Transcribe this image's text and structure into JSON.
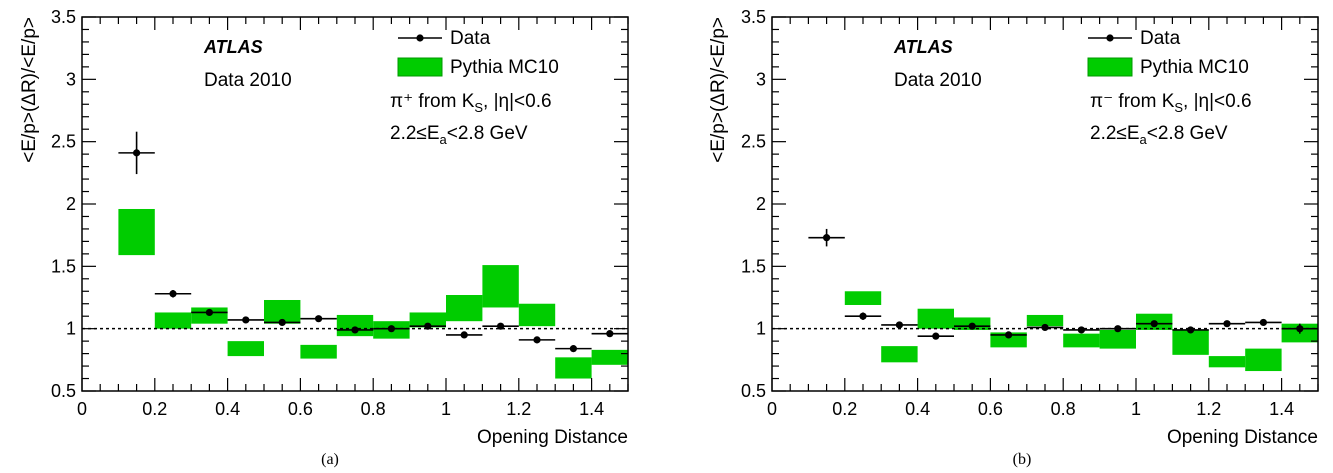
{
  "chart_data": [
    {
      "type": "scatter",
      "panel_label": "(a)",
      "experiment": "ATLAS",
      "dataset": "Data 2010",
      "selection_line1": "π⁺ from K",
      "selection_line1_sub": "S",
      "selection_line1_tail": ", |η|<0.6",
      "selection_line2": "2.2≤E",
      "selection_line2_sub": "a",
      "selection_line2_tail": "<2.8 GeV",
      "xlabel": "Opening Distance",
      "ylabel": "<E/p>(ΔR)/<E/p>",
      "xlim": [
        0,
        1.5
      ],
      "ylim": [
        0.5,
        3.5
      ],
      "x_ticks": [
        "0",
        "0.2",
        "0.4",
        "0.6",
        "0.8",
        "1",
        "1.2",
        "1.4"
      ],
      "y_ticks": [
        "0.5",
        "1",
        "1.5",
        "2",
        "2.5",
        "3",
        "3.5"
      ],
      "reference_line": 1.0,
      "legend": [
        {
          "name": "Data",
          "marker": "point-errorbar"
        },
        {
          "name": "Pythia MC10",
          "marker": "green-box"
        }
      ],
      "data": {
        "x": [
          0.15,
          0.25,
          0.35,
          0.45,
          0.55,
          0.65,
          0.75,
          0.85,
          0.95,
          1.05,
          1.15,
          1.25,
          1.35,
          1.45
        ],
        "y": [
          2.41,
          1.28,
          1.13,
          1.07,
          1.05,
          1.08,
          0.99,
          1.0,
          1.02,
          0.95,
          1.02,
          0.91,
          0.84,
          0.96
        ],
        "yerr": [
          0.17,
          0.03,
          0.02,
          0.02,
          0.02,
          0.02,
          0.02,
          0.02,
          0.02,
          0.02,
          0.02,
          0.02,
          0.02,
          0.02
        ],
        "xerr": 0.05
      },
      "mc_bands": [
        {
          "xlo": 0.1,
          "xhi": 0.2,
          "ylo": 1.59,
          "yhi": 1.96
        },
        {
          "xlo": 0.2,
          "xhi": 0.3,
          "ylo": 1.0,
          "yhi": 1.13
        },
        {
          "xlo": 0.3,
          "xhi": 0.4,
          "ylo": 1.04,
          "yhi": 1.17
        },
        {
          "xlo": 0.4,
          "xhi": 0.5,
          "ylo": 0.78,
          "yhi": 0.9
        },
        {
          "xlo": 0.5,
          "xhi": 0.6,
          "ylo": 1.04,
          "yhi": 1.23
        },
        {
          "xlo": 0.6,
          "xhi": 0.7,
          "ylo": 0.76,
          "yhi": 0.87
        },
        {
          "xlo": 0.7,
          "xhi": 0.8,
          "ylo": 0.94,
          "yhi": 1.11
        },
        {
          "xlo": 0.8,
          "xhi": 0.9,
          "ylo": 0.92,
          "yhi": 1.06
        },
        {
          "xlo": 0.9,
          "xhi": 1.0,
          "ylo": 1.01,
          "yhi": 1.13
        },
        {
          "xlo": 1.0,
          "xhi": 1.1,
          "ylo": 1.06,
          "yhi": 1.27
        },
        {
          "xlo": 1.1,
          "xhi": 1.2,
          "ylo": 1.17,
          "yhi": 1.51
        },
        {
          "xlo": 1.2,
          "xhi": 1.3,
          "ylo": 1.02,
          "yhi": 1.2
        },
        {
          "xlo": 1.3,
          "xhi": 1.4,
          "ylo": 0.6,
          "yhi": 0.77
        },
        {
          "xlo": 1.4,
          "xhi": 1.5,
          "ylo": 0.71,
          "yhi": 0.83
        }
      ]
    },
    {
      "type": "scatter",
      "panel_label": "(b)",
      "experiment": "ATLAS",
      "dataset": "Data 2010",
      "selection_line1": "π⁻ from K",
      "selection_line1_sub": "S",
      "selection_line1_tail": ", |η|<0.6",
      "selection_line2": "2.2≤E",
      "selection_line2_sub": "a",
      "selection_line2_tail": "<2.8 GeV",
      "xlabel": "Opening Distance",
      "ylabel": "<E/p>(ΔR)/<E/p>",
      "xlim": [
        0,
        1.5
      ],
      "ylim": [
        0.5,
        3.5
      ],
      "x_ticks": [
        "0",
        "0.2",
        "0.4",
        "0.6",
        "0.8",
        "1",
        "1.2",
        "1.4"
      ],
      "y_ticks": [
        "0.5",
        "1",
        "1.5",
        "2",
        "2.5",
        "3",
        "3.5"
      ],
      "reference_line": 1.0,
      "legend": [
        {
          "name": "Data",
          "marker": "point-errorbar"
        },
        {
          "name": "Pythia MC10",
          "marker": "green-box"
        }
      ],
      "data": {
        "x": [
          0.15,
          0.25,
          0.35,
          0.45,
          0.55,
          0.65,
          0.75,
          0.85,
          0.95,
          1.05,
          1.15,
          1.25,
          1.35,
          1.45
        ],
        "y": [
          1.73,
          1.1,
          1.03,
          0.94,
          1.02,
          0.95,
          1.01,
          0.99,
          1.0,
          1.04,
          0.99,
          1.04,
          1.05,
          1.0
        ],
        "yerr": [
          0.07,
          0.03,
          0.02,
          0.02,
          0.02,
          0.02,
          0.02,
          0.02,
          0.02,
          0.02,
          0.02,
          0.02,
          0.02,
          0.04
        ],
        "xerr": 0.05
      },
      "mc_bands": [
        {
          "xlo": 0.2,
          "xhi": 0.3,
          "ylo": 1.19,
          "yhi": 1.3
        },
        {
          "xlo": 0.3,
          "xhi": 0.4,
          "ylo": 0.73,
          "yhi": 0.86
        },
        {
          "xlo": 0.4,
          "xhi": 0.5,
          "ylo": 1.0,
          "yhi": 1.16
        },
        {
          "xlo": 0.5,
          "xhi": 0.6,
          "ylo": 0.99,
          "yhi": 1.09
        },
        {
          "xlo": 0.6,
          "xhi": 0.7,
          "ylo": 0.85,
          "yhi": 0.97
        },
        {
          "xlo": 0.7,
          "xhi": 0.8,
          "ylo": 1.02,
          "yhi": 1.11
        },
        {
          "xlo": 0.8,
          "xhi": 0.9,
          "ylo": 0.85,
          "yhi": 0.96
        },
        {
          "xlo": 0.9,
          "xhi": 1.0,
          "ylo": 0.84,
          "yhi": 0.99
        },
        {
          "xlo": 1.0,
          "xhi": 1.1,
          "ylo": 0.99,
          "yhi": 1.12
        },
        {
          "xlo": 1.1,
          "xhi": 1.2,
          "ylo": 0.79,
          "yhi": 0.99
        },
        {
          "xlo": 1.2,
          "xhi": 1.3,
          "ylo": 0.69,
          "yhi": 0.78
        },
        {
          "xlo": 1.3,
          "xhi": 1.4,
          "ylo": 0.66,
          "yhi": 0.84
        },
        {
          "xlo": 1.4,
          "xhi": 1.5,
          "ylo": 0.89,
          "yhi": 1.04
        }
      ]
    }
  ],
  "colors": {
    "mc_fill": "#00cc00",
    "mc_stroke": "#009900",
    "data_marker": "#000000",
    "axis": "#000000"
  }
}
